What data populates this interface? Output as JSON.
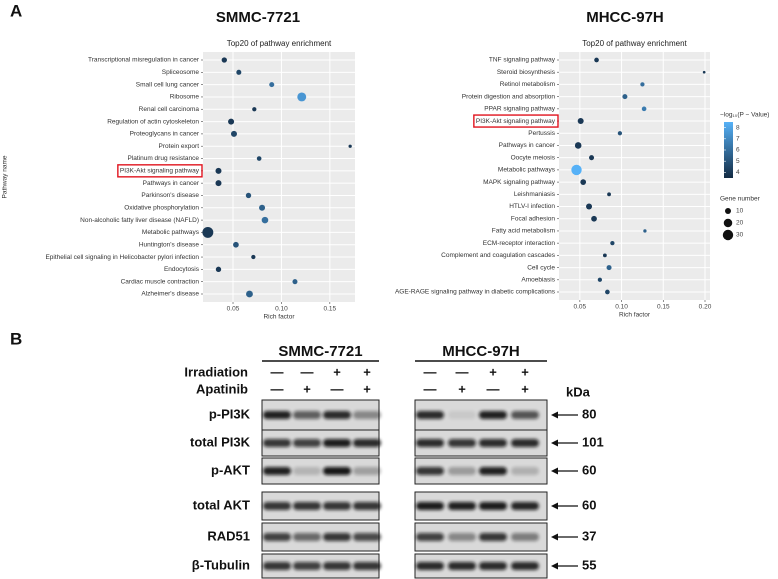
{
  "panel_labels": [
    "A",
    "B"
  ],
  "chart_data": [
    {
      "type": "bubble",
      "cell_line": "SMMC-7721",
      "title": "Top20 of pathway enrichment",
      "x_label": "Rich factor",
      "y_label": "Pathway name",
      "categories": [
        "Transcriptional misregulation in cancer",
        "Spliceosome",
        "Small cell lung cancer",
        "Ribosome",
        "Renal cell carcinoma",
        "Regulation of actin cytoskeleton",
        "Proteoglycans in cancer",
        "Protein export",
        "Platinum drug resistance",
        "PI3K-Akt signaling pathway",
        "Pathways in cancer",
        "Parkinson's disease",
        "Oxidative phosphorylation",
        "Non-alcoholic fatty liver disease (NAFLD)",
        "Metabolic pathways",
        "Huntington's disease",
        "Epithelial cell signaling in Helicobacter pylori infection",
        "Endocytosis",
        "Cardiac muscle contraction",
        "Alzheimer's disease"
      ],
      "values": [
        0.041,
        0.056,
        0.09,
        0.121,
        0.072,
        0.048,
        0.051,
        0.171,
        0.077,
        0.035,
        0.035,
        0.066,
        0.08,
        0.083,
        0.024,
        0.053,
        0.071,
        0.035,
        0.114,
        0.067
      ],
      "sizes": [
        8,
        7,
        7,
        22,
        5,
        10,
        10,
        3,
        6,
        10,
        10,
        8,
        10,
        12,
        33,
        9,
        5,
        8,
        7,
        13
      ],
      "color_values": [
        4,
        4.5,
        6,
        7.5,
        4,
        4,
        4.5,
        4,
        4.5,
        4,
        4,
        5,
        5.5,
        6,
        4,
        5,
        4,
        4,
        5.5,
        5.5
      ],
      "color_lim": [
        3.5,
        8.5
      ],
      "color_low": "#132b43",
      "color_high": "#56b1f7",
      "highlighted_category": "PI3K-Akt signaling pathway",
      "xlim": [
        0.019,
        0.176
      ],
      "xticks": [
        0.05,
        {
          "value": 0.1,
          "label": "0.10"
        },
        0.15
      ],
      "grid": true
    },
    {
      "type": "bubble",
      "cell_line": "MHCC-97H",
      "title": "Top20 of pathway enrichment",
      "x_label": "Rich factor",
      "categories": [
        "TNF signaling pathway",
        "Steroid biosynthesis",
        "Retinol metabolism",
        "Protein digestion and absorption",
        "PPAR signaling pathway",
        "PI3K-Akt signaling pathway",
        "Pertussis",
        "Pathways in cancer",
        "Oocyte meiosis",
        "Metabolic pathways",
        "MAPK signaling pathway",
        "Leishmaniasis",
        "HTLV-I infection",
        "Focal adhesion",
        "Fatty acid metabolism",
        "ECM-receptor interaction",
        "Complement and coagulation cascades",
        "Cell cycle",
        "Amoebiasis",
        "AGE-RAGE signaling pathway in diabetic complications"
      ],
      "values": [
        0.07,
        0.199,
        0.125,
        0.104,
        0.127,
        0.051,
        0.098,
        0.048,
        0.064,
        0.046,
        0.054,
        0.085,
        0.061,
        0.067,
        0.128,
        0.089,
        0.08,
        0.085,
        0.074,
        0.083
      ],
      "sizes": [
        6,
        2,
        5,
        7,
        6,
        10,
        5,
        12,
        7,
        30,
        9,
        4,
        10,
        9,
        3,
        5,
        4,
        7,
        5,
        6
      ],
      "color_values": [
        4,
        4,
        6,
        5.5,
        6.5,
        4,
        5,
        4,
        4,
        8.5,
        4,
        4,
        4,
        4,
        5.5,
        4.5,
        4,
        5.5,
        4.5,
        4.5
      ],
      "color_lim": [
        3.5,
        8.5
      ],
      "color_low": "#132b43",
      "color_high": "#56b1f7",
      "highlighted_category": "PI3K-Akt signaling pathway",
      "xlim": [
        0.025,
        0.206
      ],
      "xticks": [
        0.05,
        {
          "value": 0.1,
          "label": "0.10"
        },
        0.15,
        {
          "value": 0.2,
          "label": "0.20"
        }
      ],
      "grid": true,
      "legend": {
        "color_title": "−log₁₀(P − Value)",
        "color_ticks": [
          8,
          7,
          6,
          5,
          4
        ],
        "size_title": "Gene number",
        "size_ticks": [
          10,
          20,
          30
        ]
      }
    }
  ],
  "blot": {
    "cell_lines": [
      "SMMC-7721",
      "MHCC-97H"
    ],
    "conditions": [
      {
        "name": "Irradiation",
        "signs": [
          "—",
          "—",
          "+",
          "+",
          "—",
          "—",
          "+",
          "+"
        ]
      },
      {
        "name": "Apatinib",
        "signs": [
          "—",
          "+",
          "—",
          "+",
          "—",
          "+",
          "—",
          "+"
        ]
      }
    ],
    "unit": "kDa",
    "proteins": [
      {
        "name": "p-PI3K",
        "kda": 80
      },
      {
        "name": "total PI3K",
        "kda": 101
      },
      {
        "name": "p-AKT",
        "kda": 60
      },
      {
        "name": "total AKT",
        "kda": 60
      },
      {
        "name": "RAD51",
        "kda": 37
      },
      {
        "name": "β-Tubulin",
        "kda": 55
      }
    ]
  }
}
